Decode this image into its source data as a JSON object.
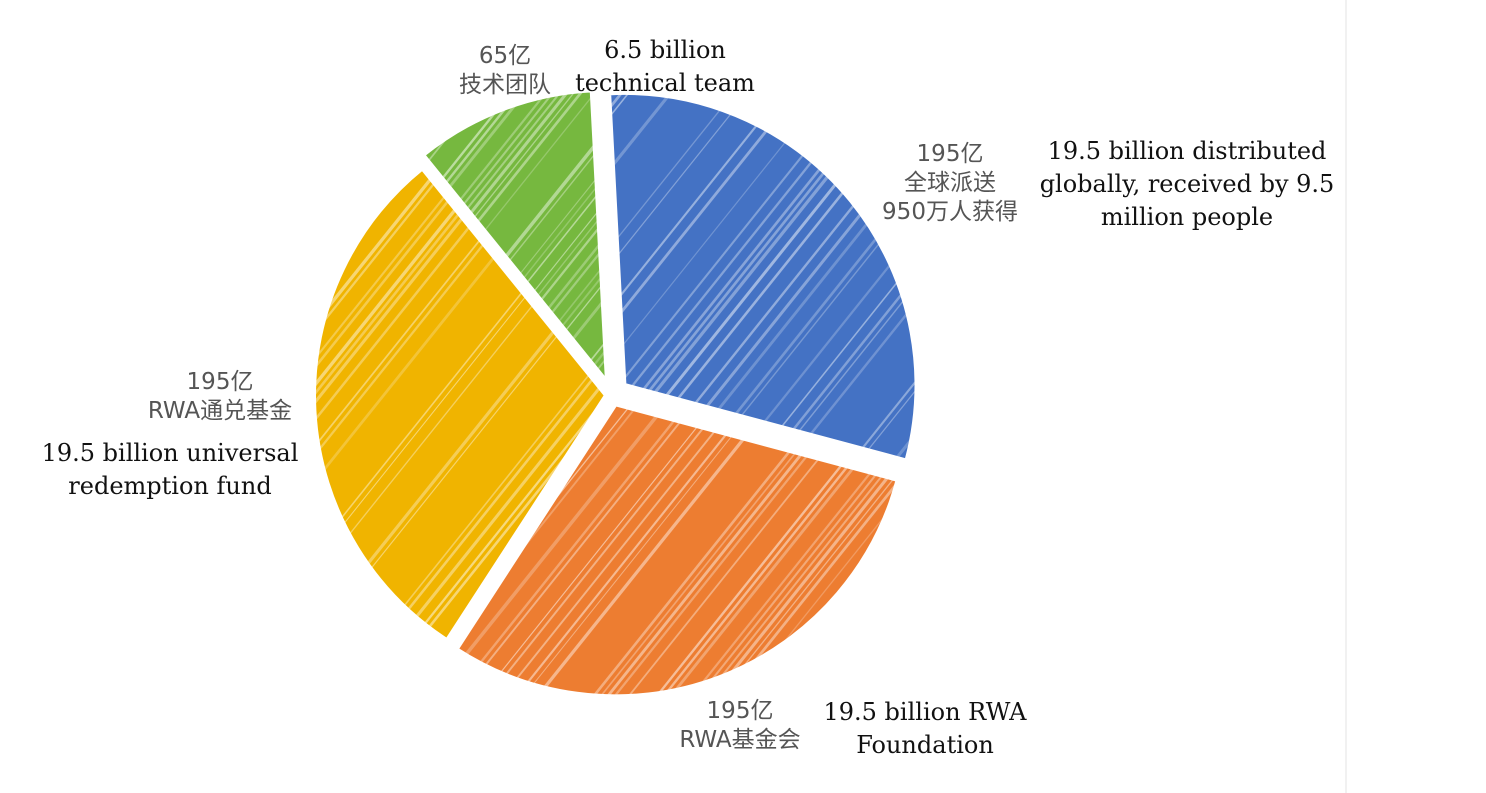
{
  "chart_data": {
    "type": "pie",
    "title": "",
    "slices": [
      {
        "value": 195,
        "color": "#4472c4",
        "label_zh": "195亿",
        "label_zh_lines": [
          "全球派送",
          "950万人获得"
        ],
        "label_en_lines": [
          "19.5 billion distributed",
          "globally, received by 9.5",
          "million people"
        ]
      },
      {
        "value": 195,
        "color": "#ed7d31",
        "label_zh": "195亿",
        "label_zh_lines": [
          "RWA基金会"
        ],
        "label_en_lines": [
          "19.5 billion RWA",
          "Foundation"
        ]
      },
      {
        "value": 195,
        "color": "#f0b400",
        "label_zh": "195亿",
        "label_zh_lines": [
          "RWA通兑基金"
        ],
        "label_en_lines": [
          "19.5 billion universal",
          "redemption fund"
        ]
      },
      {
        "value": 65,
        "color": "#76b83f",
        "label_zh": "65亿",
        "label_zh_lines": [
          "技术团队"
        ],
        "label_en_lines": [
          "6.5 billion",
          "technical team"
        ]
      }
    ],
    "legend": "none"
  }
}
